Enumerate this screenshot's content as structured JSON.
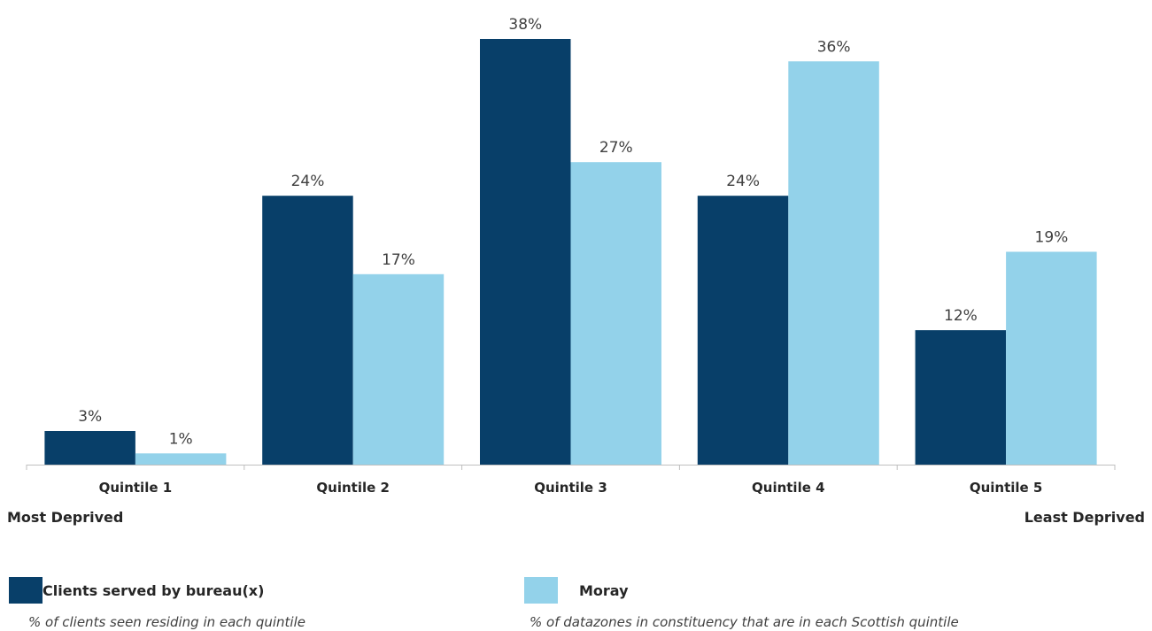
{
  "chart_data": {
    "type": "bar",
    "categories": [
      "Quintile 1",
      "Quintile 2",
      "Quintile 3",
      "Quintile 4",
      "Quintile 5"
    ],
    "series": [
      {
        "name": "Clients served by bureau(x)",
        "description": "% of clients seen residing in each quintile",
        "color": "#083f69",
        "values": [
          3,
          24,
          38,
          24,
          12
        ],
        "labels": [
          "3%",
          "24%",
          "38%",
          "24%",
          "12%"
        ]
      },
      {
        "name": "Moray",
        "description": "% of datazones in constituency that are in each Scottish quintile",
        "color": "#93d2ea",
        "values": [
          1,
          17,
          27,
          36,
          19
        ],
        "labels": [
          "1%",
          "17%",
          "27%",
          "36%",
          "19%"
        ]
      }
    ],
    "ylim": [
      0,
      38
    ],
    "grid": false,
    "legend_position": "bottom",
    "axis_end_labels": {
      "left": "Most Deprived",
      "right": "Least Deprived"
    }
  }
}
